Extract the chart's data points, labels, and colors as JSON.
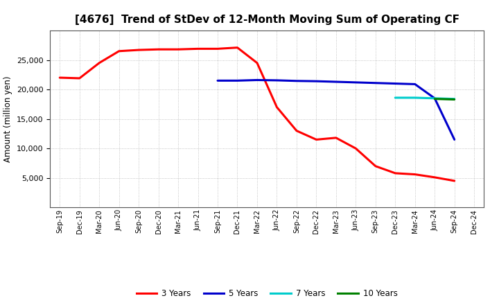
{
  "title": "[4676]  Trend of StDev of 12-Month Moving Sum of Operating CF",
  "ylabel": "Amount (million yen)",
  "background_color": "#ffffff",
  "grid_color": "#aaaaaa",
  "series": {
    "3yr": {
      "color": "#ff0000",
      "label": "3 Years",
      "x": [
        "Sep-19",
        "Dec-19",
        "Mar-20",
        "Jun-20",
        "Sep-20",
        "Dec-20",
        "Mar-21",
        "Jun-21",
        "Sep-21",
        "Dec-21",
        "Mar-22",
        "Jun-22",
        "Sep-22",
        "Dec-22",
        "Mar-23",
        "Jun-23",
        "Sep-23",
        "Dec-23",
        "Mar-24",
        "Jun-24",
        "Sep-24"
      ],
      "y": [
        22000,
        21900,
        24500,
        26500,
        26700,
        26800,
        26800,
        26900,
        26900,
        27100,
        24500,
        17000,
        13000,
        11500,
        11800,
        10000,
        7000,
        5800,
        5600,
        5100,
        4500
      ]
    },
    "5yr": {
      "color": "#0000cc",
      "label": "5 Years",
      "x": [
        "Sep-21",
        "Dec-21",
        "Mar-22",
        "Jun-22",
        "Sep-22",
        "Dec-22",
        "Mar-23",
        "Jun-23",
        "Sep-23",
        "Dec-23",
        "Mar-24",
        "Jun-24",
        "Sep-24"
      ],
      "y": [
        21500,
        21500,
        21600,
        21550,
        21450,
        21400,
        21300,
        21200,
        21100,
        21000,
        20900,
        18500,
        11500
      ]
    },
    "7yr": {
      "color": "#00cccc",
      "label": "7 Years",
      "x": [
        "Dec-23",
        "Mar-24",
        "Jun-24",
        "Sep-24"
      ],
      "y": [
        18600,
        18600,
        18500,
        18400
      ]
    },
    "10yr": {
      "color": "#008000",
      "label": "10 Years",
      "x": [
        "Jun-24",
        "Sep-24"
      ],
      "y": [
        18400,
        18300
      ]
    }
  },
  "xtick_labels": [
    "Sep-19",
    "Dec-19",
    "Mar-20",
    "Jun-20",
    "Sep-20",
    "Dec-20",
    "Mar-21",
    "Jun-21",
    "Sep-21",
    "Dec-21",
    "Mar-22",
    "Jun-22",
    "Sep-22",
    "Dec-22",
    "Mar-23",
    "Jun-23",
    "Sep-23",
    "Dec-23",
    "Mar-24",
    "Jun-24",
    "Sep-24",
    "Dec-24"
  ],
  "ylim": [
    0,
    30000
  ],
  "yticks": [
    5000,
    10000,
    15000,
    20000,
    25000
  ],
  "line_width": 2.2,
  "title_fontsize": 11,
  "ylabel_fontsize": 8.5,
  "tick_fontsize": 8,
  "xtick_fontsize": 7,
  "legend_fontsize": 8.5
}
